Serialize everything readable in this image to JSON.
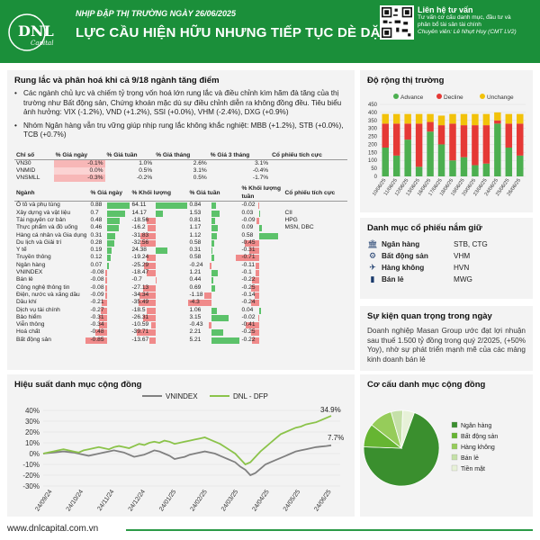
{
  "header": {
    "brand": "DNL",
    "brand_sub": "Capital",
    "subtitle": "NHỊP ĐẬP THỊ TRƯỜNG NGÀY 26/06/2025",
    "title": "LỰC CẦU HIỆN HỮU NHƯNG TIẾP TỤC DÈ DẶT",
    "contact_title": "Liên hệ tư vấn",
    "contact_line1": "Tư vấn cơ cấu danh mục, đầu tư và",
    "contact_line2": "phân bổ tài sản tài chính",
    "contact_expert": "Chuyên viên: Lê Nhựt Huy (CMT LV2)"
  },
  "summary": {
    "heading": "Rung lắc và phân hoá khi cả 9/18 ngành tăng điểm",
    "bullet1": "Các ngành chủ lực và chiếm tỷ trọng vốn hoá lớn rung lắc và điều chỉnh kìm hãm đà tăng của thị trường như Bất động sản, Chứng khoán mặc dù sự điều chỉnh diễn ra không đồng đều. Tiêu biểu ảnh hưởng: VIX (-1.2%), VND (+1.2%), SSI (+0.0%), VHM (-2.4%), DXG (+0.9%)",
    "bullet2": "Nhóm Ngân hàng vẫn trụ vững giúp nhịp rung lắc không khắc nghiệt: MBB (+1.2%), STB (+0.0%), TCB (+0.7%)"
  },
  "index_table": {
    "headers": [
      "Chỉ số",
      "% Giá ngày",
      "% Giá tuần",
      "% Giá tháng",
      "% Giá 3 tháng",
      "Cổ phiếu tích cực"
    ],
    "rows": [
      {
        "name": "VN30",
        "day": "-0.1%",
        "week": "1.0%",
        "month": "2.6%",
        "m3": "3.1%",
        "stocks": ""
      },
      {
        "name": "VNMID",
        "day": "0.0%",
        "week": "0.5%",
        "month": "3.1%",
        "m3": "-0.4%",
        "stocks": ""
      },
      {
        "name": "VNSMLL",
        "day": "-0.3%",
        "week": "-0.2%",
        "month": "0.5%",
        "m3": "-1.7%",
        "stocks": ""
      }
    ]
  },
  "sector_table": {
    "headers": [
      "Ngành",
      "% Giá ngày",
      "% Khối lượng",
      "% Giá tuần",
      "% Khối lượng tuần",
      "Cổ phiếu tích cực"
    ],
    "rows": [
      {
        "name": "Ô tô và phụ tùng",
        "day": "0.88",
        "vol": "64.11",
        "week": "0.84",
        "volw": "-0.02",
        "stocks": ""
      },
      {
        "name": "Xây dựng và vật liệu",
        "day": "0.7",
        "vol": "14.17",
        "week": "1.53",
        "volw": "0.03",
        "stocks": "CII"
      },
      {
        "name": "Tài nguyên cơ bản",
        "day": "0.48",
        "vol": "-18.56",
        "week": "0.81",
        "volw": "-0.09",
        "stocks": "HPG"
      },
      {
        "name": "Thực phẩm và đồ uống",
        "day": "0.46",
        "vol": "-16.2",
        "week": "1.17",
        "volw": "0.09",
        "stocks": "MSN, DBC"
      },
      {
        "name": "Hàng cá nhân và Gia dụng",
        "day": "0.31",
        "vol": "-31.83",
        "week": "1.12",
        "volw": "0.58",
        "stocks": ""
      },
      {
        "name": "Du lịch và Giải trí",
        "day": "0.28",
        "vol": "-32.56",
        "week": "0.58",
        "volw": "-0.45",
        "stocks": ""
      },
      {
        "name": "Y tế",
        "day": "0.19",
        "vol": "24.38",
        "week": "0.31",
        "volw": "-0.31",
        "stocks": ""
      },
      {
        "name": "Truyền thông",
        "day": "0.12",
        "vol": "-19.24",
        "week": "0.58",
        "volw": "-0.71",
        "stocks": ""
      },
      {
        "name": "Ngân hàng",
        "day": "0.07",
        "vol": "-25.29",
        "week": "-0.24",
        "volw": "-0.11",
        "stocks": ""
      },
      {
        "name": "VNINDEX",
        "day": "-0.08",
        "vol": "-18.47",
        "week": "1.21",
        "volw": "-0.1",
        "stocks": ""
      },
      {
        "name": "Bán lẻ",
        "day": "-0.08",
        "vol": "-0.7",
        "week": "0.44",
        "volw": "-0.22",
        "stocks": ""
      },
      {
        "name": "Công nghệ thông tin",
        "day": "-0.08",
        "vol": "-27.13",
        "week": "0.69",
        "volw": "-0.25",
        "stocks": ""
      },
      {
        "name": "Điện, nước và xăng dầu",
        "day": "-0.09",
        "vol": "-34.34",
        "week": "-1.18",
        "volw": "-0.14",
        "stocks": ""
      },
      {
        "name": "Dầu khí",
        "day": "-0.21",
        "vol": "-35.49",
        "week": "-4.3",
        "volw": "-0.24",
        "stocks": ""
      },
      {
        "name": "Dịch vụ tài chính",
        "day": "-0.27",
        "vol": "-18.5",
        "week": "1.06",
        "volw": "0.04",
        "stocks": ""
      },
      {
        "name": "Bảo hiểm",
        "day": "-0.31",
        "vol": "-26.31",
        "week": "3.15",
        "volw": "-0.02",
        "stocks": ""
      },
      {
        "name": "Viễn thông",
        "day": "-0.34",
        "vol": "-10.59",
        "week": "-0.43",
        "volw": "-0.41",
        "stocks": ""
      },
      {
        "name": "Hoá chất",
        "day": "-0.48",
        "vol": "-39.71",
        "week": "2.21",
        "volw": "-0.25",
        "stocks": ""
      },
      {
        "name": "Bất động sản",
        "day": "-0.85",
        "vol": "-13.67",
        "week": "5.21",
        "volw": "-0.22",
        "stocks": ""
      }
    ]
  },
  "breadth": {
    "heading": "Độ rộng thị trường",
    "legend": [
      "Advance",
      "Decline",
      "Unchange"
    ],
    "colors": [
      "#4caf50",
      "#e53935",
      "#f2c20a"
    ]
  },
  "holdings": {
    "heading": "Danh mục cổ phiếu nắm giữ",
    "rows": [
      {
        "sector": "Ngân hàng",
        "stocks": "STB, CTG",
        "icon": "bank-icon"
      },
      {
        "sector": "Bất động sản",
        "stocks": "VHM",
        "icon": "building-icon"
      },
      {
        "sector": "Hàng không",
        "stocks": "HVN",
        "icon": "plane-icon"
      },
      {
        "sector": "Bán lẻ",
        "stocks": "MWG",
        "icon": "cart-icon"
      }
    ]
  },
  "events": {
    "heading": "Sự kiện quan trọng trong ngày",
    "text": "Doanh nghiệp Masan Group ước đạt lợi nhuận sau thuế 1.500 tỷ đồng trong quý 2/2025, (+50% Yoy), nhờ sự phát triển mạnh mẽ của các mảng kinh doanh bán lẻ"
  },
  "performance": {
    "heading": "Hiệu suất danh mục cộng đồng",
    "end_label_dfp": "34.9%",
    "end_label_vni": "7.7%"
  },
  "allocation": {
    "heading": "Cơ cấu danh mục cộng đồng"
  },
  "footer": {
    "url": "www.dnlcapital.com.vn"
  },
  "chart_data": [
    {
      "type": "bar",
      "stacked": true,
      "title": "Độ rộng thị trường",
      "categories": [
        "10/06/25",
        "11/06/25",
        "12/06/25",
        "13/06/25",
        "16/06/25",
        "17/06/25",
        "18/06/25",
        "19/06/25",
        "20/06/25",
        "23/06/25",
        "24/06/25",
        "25/06/25",
        "26/06/25"
      ],
      "series": [
        {
          "name": "Advance",
          "values": [
            180,
            130,
            230,
            60,
            280,
            200,
            100,
            120,
            70,
            80,
            330,
            180,
            130
          ]
        },
        {
          "name": "Decline",
          "values": [
            150,
            200,
            100,
            270,
            60,
            120,
            230,
            200,
            250,
            240,
            20,
            150,
            200
          ]
        },
        {
          "name": "Unchange",
          "values": [
            60,
            60,
            60,
            60,
            50,
            60,
            60,
            70,
            70,
            70,
            50,
            60,
            60
          ]
        }
      ],
      "ylim": [
        0,
        450
      ],
      "yticks": [
        0,
        50,
        100,
        150,
        200,
        250,
        300,
        350,
        400,
        450
      ],
      "legend": "top"
    },
    {
      "type": "line",
      "title": "Hiệu suất danh mục cộng đồng",
      "series": [
        {
          "name": "VNINDEX",
          "color": "#808080",
          "values": [
            0,
            0.5,
            1,
            1.5,
            2,
            1.5,
            1,
            0,
            -1,
            -2,
            -1,
            0,
            1,
            2,
            3,
            2,
            1,
            -1,
            -3,
            -2,
            -1,
            1,
            3,
            2,
            0,
            -2,
            -5,
            -4,
            -3,
            -1,
            0,
            1,
            2,
            1,
            0,
            -2,
            -4,
            -6,
            -8,
            -12,
            -15,
            -20,
            -18,
            -14,
            -10,
            -8,
            -6,
            -4,
            -2,
            0,
            2,
            3,
            4,
            5,
            6,
            6.5,
            7,
            7.7
          ]
        },
        {
          "name": "DNL - DFP",
          "color": "#8bc34a",
          "values": [
            0,
            1,
            2,
            3,
            4,
            3,
            2,
            1,
            3,
            4,
            5,
            6,
            5,
            4,
            6,
            7,
            6,
            5,
            7,
            9,
            8,
            10,
            11,
            10,
            12,
            11,
            9,
            10,
            11,
            12,
            13,
            14,
            15,
            13,
            11,
            9,
            6,
            3,
            0,
            -5,
            -10,
            -8,
            -3,
            2,
            6,
            10,
            14,
            18,
            20,
            22,
            24,
            25,
            27,
            28,
            29,
            31,
            33,
            34.9
          ]
        }
      ],
      "xticks": [
        "24/09/24",
        "24/10/24",
        "24/11/24",
        "24/12/24",
        "24/01/25",
        "24/02/25",
        "24/03/25",
        "24/04/25",
        "24/05/25",
        "24/06/25"
      ],
      "ylim": [
        -30,
        40
      ],
      "yticks": [
        "40%",
        "30%",
        "20%",
        "10%",
        "0%",
        "-10%",
        "-20%",
        "-30%"
      ],
      "legend": "top"
    },
    {
      "type": "pie",
      "title": "Cơ cấu danh mục cộng đồng",
      "labels": [
        "Ngân hàng",
        "Bất động sản",
        "Hàng không",
        "Bán lẻ",
        "Tiền mặt"
      ],
      "values": [
        70,
        10,
        10,
        5,
        5
      ],
      "colors": [
        "#3a8f2e",
        "#66b532",
        "#96cc5a",
        "#c5e0a8",
        "#e7f1d8"
      ]
    }
  ]
}
